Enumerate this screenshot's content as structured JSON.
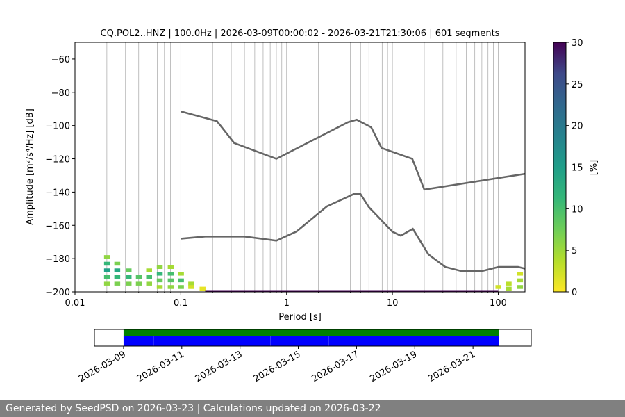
{
  "chart_data": [
    {
      "type": "heatmap",
      "title": "CQ.POL2..HNZ | 100.0Hz | 2026-03-09T00:00:02 - 2026-03-21T21:30:06 | 601 segments",
      "xlabel": "Period [s]",
      "ylabel": "Amplitude [m²/s⁴/Hz] [dB]",
      "x_scale": "log",
      "xlim": [
        0.01,
        179
      ],
      "ylim": [
        -200,
        -50
      ],
      "x_ticks": [
        {
          "value": 0.01,
          "label": "0.01"
        },
        {
          "value": 0.1,
          "label": "0.1"
        },
        {
          "value": 1,
          "label": "1"
        },
        {
          "value": 10,
          "label": "10"
        },
        {
          "value": 100,
          "label": "100"
        }
      ],
      "y_ticks": [
        {
          "value": -60,
          "label": "−60"
        },
        {
          "value": -80,
          "label": "−80"
        },
        {
          "value": -100,
          "label": "−100"
        },
        {
          "value": -120,
          "label": "−120"
        },
        {
          "value": -140,
          "label": "−140"
        },
        {
          "value": -160,
          "label": "−160"
        },
        {
          "value": -180,
          "label": "−180"
        },
        {
          "value": -200,
          "label": "−200"
        }
      ],
      "grid": "vertical",
      "noise_models": {
        "high": {
          "x": [
            0.1,
            0.22,
            0.32,
            0.8,
            3.8,
            4.6,
            6.3,
            7.9,
            15.4,
            20,
            179
          ],
          "y": [
            -91.5,
            -97.4,
            -110.5,
            -120,
            -98,
            -96.5,
            -101,
            -113.5,
            -120,
            -138.5,
            -129
          ]
        },
        "low": {
          "x": [
            0.1,
            0.17,
            0.4,
            0.8,
            1.24,
            2.4,
            4.3,
            5.0,
            6.0,
            10,
            12,
            15.6,
            21.9,
            31.6,
            45,
            70,
            101,
            154,
            179
          ],
          "y": [
            -168,
            -166.7,
            -166.7,
            -169.2,
            -163.7,
            -148.6,
            -141.2,
            -141.2,
            -149.1,
            -163.8,
            -166.2,
            -162.1,
            -177.5,
            -185,
            -187.5,
            -187.5,
            -185,
            -185,
            -186
          ]
        },
        "color": "#666666"
      },
      "colorbar": {
        "label": "[%]",
        "range": [
          0,
          30
        ],
        "ticks": [
          "0",
          "5",
          "10",
          "15",
          "20",
          "25",
          "30"
        ],
        "colormap": "viridis_r"
      },
      "psd_cells": [
        {
          "x": 0.02,
          "y": -180,
          "value": 5
        },
        {
          "x": 0.02,
          "y": -184,
          "value": 10
        },
        {
          "x": 0.02,
          "y": -188,
          "value": 13
        },
        {
          "x": 0.02,
          "y": -192,
          "value": 9
        },
        {
          "x": 0.02,
          "y": -196,
          "value": 5
        },
        {
          "x": 0.025,
          "y": -184,
          "value": 6
        },
        {
          "x": 0.025,
          "y": -188,
          "value": 12
        },
        {
          "x": 0.025,
          "y": -192,
          "value": 10
        },
        {
          "x": 0.025,
          "y": -196,
          "value": 6
        },
        {
          "x": 0.032,
          "y": -188,
          "value": 7
        },
        {
          "x": 0.032,
          "y": -192,
          "value": 10
        },
        {
          "x": 0.032,
          "y": -196,
          "value": 6
        },
        {
          "x": 0.04,
          "y": -192,
          "value": 8
        },
        {
          "x": 0.04,
          "y": -196,
          "value": 6
        },
        {
          "x": 0.05,
          "y": -188,
          "value": 4
        },
        {
          "x": 0.05,
          "y": -192,
          "value": 9
        },
        {
          "x": 0.05,
          "y": -196,
          "value": 5
        },
        {
          "x": 0.063,
          "y": -186,
          "value": 5
        },
        {
          "x": 0.063,
          "y": -190,
          "value": 10
        },
        {
          "x": 0.063,
          "y": -194,
          "value": 7
        },
        {
          "x": 0.063,
          "y": -198,
          "value": 4
        },
        {
          "x": 0.08,
          "y": -186,
          "value": 4
        },
        {
          "x": 0.08,
          "y": -190,
          "value": 9
        },
        {
          "x": 0.08,
          "y": -194,
          "value": 8
        },
        {
          "x": 0.08,
          "y": -198,
          "value": 5
        },
        {
          "x": 0.1,
          "y": -190,
          "value": 4
        },
        {
          "x": 0.1,
          "y": -194,
          "value": 9
        },
        {
          "x": 0.1,
          "y": -198,
          "value": 6
        },
        {
          "x": 0.125,
          "y": -196,
          "value": 4
        },
        {
          "x": 0.125,
          "y": -198,
          "value": 2
        },
        {
          "x": 0.16,
          "y": -199,
          "value": 1
        },
        {
          "x": 100,
          "y": -198,
          "value": 2
        },
        {
          "x": 125,
          "y": -196,
          "value": 3
        },
        {
          "x": 125,
          "y": -199,
          "value": 4
        },
        {
          "x": 160,
          "y": -190,
          "value": 2
        },
        {
          "x": 160,
          "y": -194,
          "value": 4
        },
        {
          "x": 160,
          "y": -198,
          "value": 5
        }
      ]
    },
    {
      "type": "timeline",
      "title": "",
      "x_type": "date",
      "xlim": [
        "2026-03-08",
        "2026-03-23"
      ],
      "tick_labels": [
        "2026-03-09",
        "2026-03-11",
        "2026-03-13",
        "2026-03-15",
        "2026-03-17",
        "2026-03-19",
        "2026-03-21"
      ],
      "available": {
        "start": "2026-03-09T00:00:02",
        "end": "2026-03-21T21:30:06",
        "color": "#008000"
      },
      "used_segments": [
        {
          "start": "2026-03-09T00:00",
          "end": "2026-03-10T00:50"
        },
        {
          "start": "2026-03-10T00:55",
          "end": "2026-03-14T00:55"
        },
        {
          "start": "2026-03-14T01:00",
          "end": "2026-03-16T00:55"
        },
        {
          "start": "2026-03-16T01:00",
          "end": "2026-03-17T00:55"
        },
        {
          "start": "2026-03-17T01:00",
          "end": "2026-03-20T00:00"
        },
        {
          "start": "2026-03-20T00:05",
          "end": "2026-03-21T21:30"
        }
      ],
      "used_color": "#0000ff"
    }
  ],
  "footer": "Generated by SeedPSD on 2026-03-23 | Calculations updated on 2026-03-22"
}
